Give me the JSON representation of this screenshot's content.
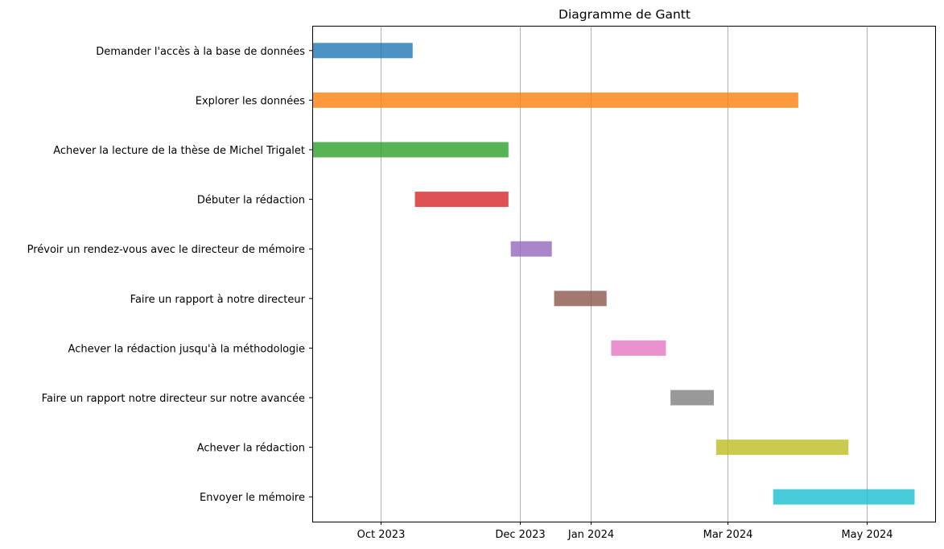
{
  "chart_data": {
    "type": "bar",
    "orientation": "horizontal",
    "title": "Diagramme de Gantt",
    "xlabel": "",
    "ylabel": "",
    "grid": "vertical",
    "xlim": [
      "2023-09-01",
      "2024-05-31"
    ],
    "x_ticks": [
      {
        "date": "2023-10-01",
        "label": "Oct 2023"
      },
      {
        "date": "2023-12-01",
        "label": "Dec 2023"
      },
      {
        "date": "2024-01-01",
        "label": "Jan 2024"
      },
      {
        "date": "2024-03-01",
        "label": "Mar 2024"
      },
      {
        "date": "2024-05-01",
        "label": "May 2024"
      }
    ],
    "tasks": [
      {
        "name": "Demander l'accès à la base de données",
        "start": "2023-09-01",
        "end": "2023-10-15",
        "color": "#1f77b4"
      },
      {
        "name": "Explorer les données",
        "start": "2023-09-01",
        "end": "2024-04-01",
        "color": "#ff7f0e"
      },
      {
        "name": "Achever la lecture de la thèse de Michel Trigalet",
        "start": "2023-09-01",
        "end": "2023-11-26",
        "color": "#2ca02c"
      },
      {
        "name": "Débuter la rédaction",
        "start": "2023-10-16",
        "end": "2023-11-26",
        "color": "#d62728"
      },
      {
        "name": "Prévoir un rendez-vous avec le directeur de mémoire",
        "start": "2023-11-27",
        "end": "2023-12-15",
        "color": "#9467bd"
      },
      {
        "name": "Faire un rapport à notre directeur",
        "start": "2023-12-16",
        "end": "2024-01-08",
        "color": "#8c564b"
      },
      {
        "name": "Achever la rédaction jusqu'à la méthodologie",
        "start": "2024-01-10",
        "end": "2024-02-03",
        "color": "#e377c2"
      },
      {
        "name": "Faire un rapport notre directeur sur notre avancée",
        "start": "2024-02-05",
        "end": "2024-02-24",
        "color": "#7f7f7f"
      },
      {
        "name": "Achever la rédaction",
        "start": "2024-02-25",
        "end": "2024-04-23",
        "color": "#bcbd22"
      },
      {
        "name": "Envoyer le mémoire",
        "start": "2024-03-21",
        "end": "2024-05-22",
        "color": "#17becf"
      }
    ]
  }
}
